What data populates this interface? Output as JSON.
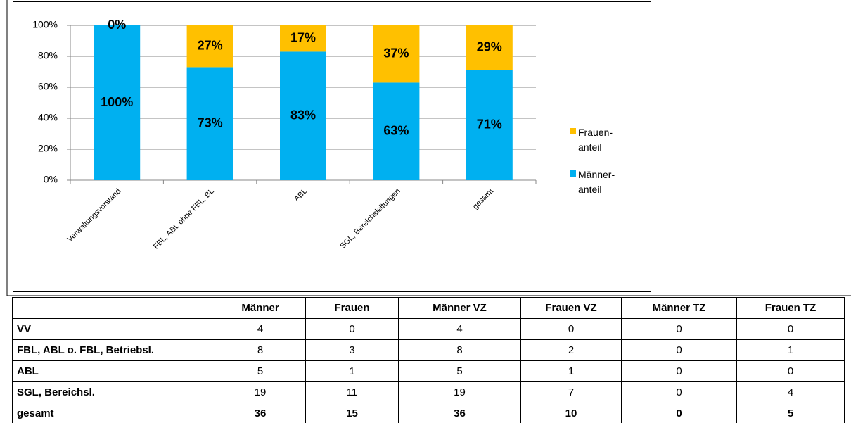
{
  "chart_data": {
    "type": "stacked_bar",
    "categories": [
      "Verwaltungsvorstand",
      "FBL, ABL ohne FBL, BL",
      "ABL",
      "SGL, Bereichsleitungen",
      "gesamt"
    ],
    "series": [
      {
        "name": "Männer-anteil",
        "color": "#00b0f0",
        "values": [
          100,
          73,
          83,
          63,
          71
        ],
        "value_labels": [
          "100%",
          "73%",
          "83%",
          "63%",
          "71%"
        ]
      },
      {
        "name": "Frauen-anteil",
        "color": "#ffc000",
        "values": [
          0,
          27,
          17,
          37,
          29
        ],
        "value_labels": [
          "0%",
          "27%",
          "17%",
          "37%",
          "29%"
        ]
      }
    ],
    "ylim": [
      0,
      100
    ],
    "yticks": [
      {
        "value": 0,
        "label": "0%"
      },
      {
        "value": 20,
        "label": "20%"
      },
      {
        "value": 40,
        "label": "40%"
      },
      {
        "value": 60,
        "label": "60%"
      },
      {
        "value": 80,
        "label": "80%"
      },
      {
        "value": 100,
        "label": "100%"
      }
    ],
    "grid": true,
    "legend": "right"
  },
  "table": {
    "header": [
      "Männer",
      "Frauen",
      "Männer VZ",
      "Frauen VZ",
      "Männer TZ",
      "Frauen TZ"
    ],
    "rows": [
      {
        "label": "VV",
        "values": [
          4,
          0,
          4,
          0,
          0,
          0
        ]
      },
      {
        "label": "FBL, ABL o. FBL, Betriebsl.",
        "values": [
          8,
          3,
          8,
          2,
          0,
          1
        ]
      },
      {
        "label": "ABL",
        "values": [
          5,
          1,
          5,
          1,
          0,
          0
        ]
      },
      {
        "label": "SGL, Bereichsl.",
        "values": [
          19,
          11,
          19,
          7,
          0,
          4
        ]
      },
      {
        "label": "gesamt",
        "values": [
          36,
          15,
          36,
          10,
          0,
          5
        ]
      }
    ]
  }
}
